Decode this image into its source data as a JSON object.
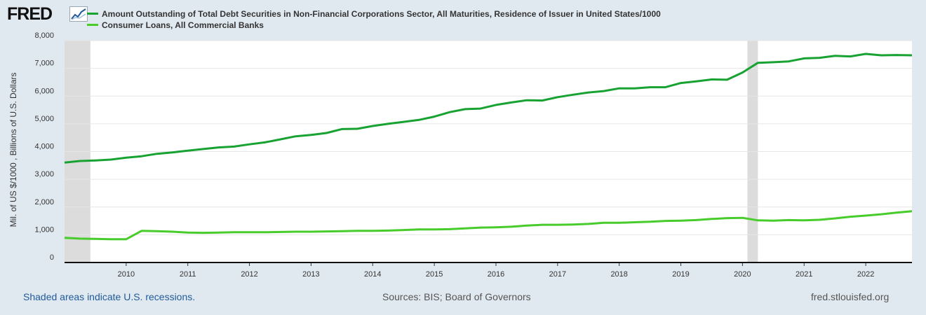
{
  "logo": {
    "text": "FRED"
  },
  "colors": {
    "series1": "#18a232",
    "series2": "#47cc2b",
    "recession": "#dcdcdc",
    "background": "#e1e9f0"
  },
  "footer": {
    "recession_note": "Shaded areas indicate U.S. recessions.",
    "sources": "Sources: BIS; Board of Governors",
    "site": "fred.stlouisfed.org"
  },
  "chart_data": {
    "type": "line",
    "title": "",
    "xlabel": "",
    "ylabel": "Mil. of US $/1000 , Billions of U.S. Dollars",
    "xlim": [
      2009.0,
      2022.75
    ],
    "ylim": [
      0,
      8000
    ],
    "grid": true,
    "y_ticks": [
      0,
      1000,
      2000,
      3000,
      4000,
      5000,
      6000,
      7000,
      8000
    ],
    "y_tick_labels": [
      "0",
      "1,000",
      "2,000",
      "3,000",
      "4,000",
      "5,000",
      "6,000",
      "7,000",
      "8,000"
    ],
    "x_ticks": [
      2010,
      2011,
      2012,
      2013,
      2014,
      2015,
      2016,
      2017,
      2018,
      2019,
      2020,
      2021,
      2022
    ],
    "x_tick_labels": [
      "2010",
      "2011",
      "2012",
      "2013",
      "2014",
      "2015",
      "2016",
      "2017",
      "2018",
      "2019",
      "2020",
      "2021",
      "2022"
    ],
    "recessions": [
      [
        2009.0,
        2009.42
      ],
      [
        2020.08,
        2020.25
      ]
    ],
    "x": [
      2009.0,
      2009.25,
      2009.5,
      2009.75,
      2010.0,
      2010.25,
      2010.5,
      2010.75,
      2011.0,
      2011.25,
      2011.5,
      2011.75,
      2012.0,
      2012.25,
      2012.5,
      2012.75,
      2013.0,
      2013.25,
      2013.5,
      2013.75,
      2014.0,
      2014.25,
      2014.5,
      2014.75,
      2015.0,
      2015.25,
      2015.5,
      2015.75,
      2016.0,
      2016.25,
      2016.5,
      2016.75,
      2017.0,
      2017.25,
      2017.5,
      2017.75,
      2018.0,
      2018.25,
      2018.5,
      2018.75,
      2019.0,
      2019.25,
      2019.5,
      2019.75,
      2020.0,
      2020.25,
      2020.5,
      2020.75,
      2021.0,
      2021.25,
      2021.5,
      2021.75,
      2022.0,
      2022.25,
      2022.5,
      2022.75
    ],
    "series": [
      {
        "name": "Amount Outstanding of Total Debt Securities in Non-Financial Corporations Sector, All Maturities, Residence of Issuer in United States/1000",
        "values": [
          3600,
          3660,
          3680,
          3710,
          3780,
          3830,
          3920,
          3970,
          4030,
          4090,
          4150,
          4180,
          4260,
          4330,
          4440,
          4550,
          4600,
          4670,
          4810,
          4820,
          4920,
          5000,
          5070,
          5140,
          5260,
          5420,
          5530,
          5550,
          5680,
          5770,
          5850,
          5840,
          5960,
          6050,
          6130,
          6180,
          6280,
          6280,
          6320,
          6320,
          6470,
          6530,
          6600,
          6590,
          6850,
          7200,
          7220,
          7250,
          7360,
          7380,
          7450,
          7430,
          7520,
          7470,
          7480,
          7470
        ]
      },
      {
        "name": "Consumer Loans, All Commercial Banks",
        "values": [
          890,
          860,
          850,
          840,
          840,
          1140,
          1130,
          1110,
          1080,
          1070,
          1080,
          1090,
          1090,
          1090,
          1100,
          1110,
          1110,
          1120,
          1130,
          1140,
          1140,
          1150,
          1170,
          1190,
          1190,
          1200,
          1230,
          1260,
          1270,
          1290,
          1330,
          1360,
          1360,
          1370,
          1390,
          1430,
          1430,
          1450,
          1470,
          1500,
          1510,
          1530,
          1570,
          1600,
          1610,
          1520,
          1510,
          1530,
          1520,
          1540,
          1590,
          1650,
          1690,
          1740,
          1800,
          1850
        ]
      }
    ]
  }
}
